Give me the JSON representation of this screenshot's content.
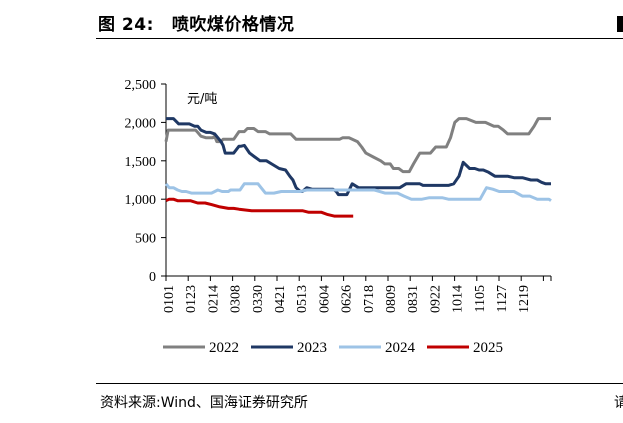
{
  "header": {
    "figure_label": "图 24:",
    "title_text": "喷吹煤价格情况",
    "edge_fragment": ""
  },
  "source": {
    "text": "资料来源:Wind、国海证券研究所",
    "edge_fragment": "请"
  },
  "chart_data": {
    "type": "line",
    "title": "喷吹煤价格情况",
    "unit_label": "元/吨",
    "ylim": [
      0,
      2500
    ],
    "yticks": [
      0,
      500,
      1000,
      1500,
      2000,
      2500
    ],
    "ytick_labels": [
      "0",
      "500",
      "1,000",
      "1,500",
      "2,000",
      "2,500"
    ],
    "categories": [
      "0101",
      "0123",
      "0214",
      "0308",
      "0330",
      "0421",
      "0513",
      "0604",
      "0626",
      "0718",
      "0809",
      "0831",
      "0922",
      "1014",
      "1105",
      "1127",
      "1219"
    ],
    "legend_position": "bottom",
    "series": [
      {
        "name": "2022",
        "color": "#808080",
        "x": [
          1,
          3,
          7,
          10,
          18,
          25,
          29,
          31,
          34,
          39,
          41,
          45,
          47,
          49,
          53,
          55,
          57,
          65,
          70,
          71,
          75,
          78,
          82,
          84,
          88,
          91,
          95,
          99,
          101,
          109,
          112,
          115,
          119,
          124,
          128,
          130,
          132,
          134,
          141,
          147,
          149,
          151,
          157,
          165,
          168,
          174,
          182,
          186,
          190,
          197,
          204,
          208,
          209,
          213,
          216,
          219,
          221,
          225,
          229,
          231,
          235,
          241,
          244,
          247,
          251,
          256,
          262,
          266,
          270,
          274,
          278,
          285,
          294,
          303,
          311,
          315,
          320,
          324,
          328,
          330,
          336,
          344,
          349,
          353,
          357,
          360,
          365
        ],
        "values": [
          1750,
          1900,
          1900,
          1900,
          1900,
          1900,
          1900,
          1870,
          1820,
          1800,
          1800,
          1800,
          1820,
          1750,
          1750,
          1780,
          1780,
          1780,
          1880,
          1880,
          1880,
          1920,
          1920,
          1920,
          1880,
          1880,
          1880,
          1850,
          1850,
          1850,
          1850,
          1850,
          1850,
          1780,
          1780,
          1780,
          1780,
          1780,
          1780,
          1780,
          1780,
          1780,
          1780,
          1780,
          1800,
          1800,
          1750,
          1680,
          1600,
          1550,
          1500,
          1460,
          1460,
          1460,
          1400,
          1400,
          1400,
          1360,
          1360,
          1360,
          1460,
          1600,
          1600,
          1600,
          1600,
          1680,
          1680,
          1680,
          1800,
          2000,
          2050,
          2050,
          2000,
          2000,
          1950,
          1950,
          1900,
          1850,
          1850,
          1850,
          1850,
          1850,
          1950,
          2050,
          2050,
          2050,
          2050
        ]
      },
      {
        "name": "2023",
        "color": "#1f3864",
        "x": [
          1,
          2,
          8,
          13,
          18,
          23,
          28,
          31,
          34,
          39,
          43,
          47,
          53,
          55,
          57,
          61,
          65,
          70,
          72,
          75,
          80,
          85,
          90,
          96,
          102,
          108,
          114,
          118,
          121,
          124,
          128,
          130,
          134,
          139,
          145,
          151,
          155,
          159,
          162,
          164,
          168,
          172,
          177,
          183,
          190,
          196,
          203,
          210,
          216,
          222,
          228,
          233,
          236,
          239,
          241,
          244,
          249,
          253,
          258,
          263,
          268,
          273,
          278,
          282,
          288,
          293,
          297,
          301,
          306,
          312,
          318,
          324,
          330,
          338,
          346,
          352,
          356,
          360,
          365
        ],
        "values": [
          2050,
          2050,
          2050,
          1980,
          1980,
          1980,
          1950,
          1950,
          1900,
          1870,
          1870,
          1850,
          1750,
          1700,
          1600,
          1600,
          1600,
          1690,
          1690,
          1700,
          1600,
          1550,
          1500,
          1500,
          1450,
          1400,
          1380,
          1300,
          1250,
          1150,
          1100,
          1100,
          1150,
          1130,
          1130,
          1130,
          1130,
          1130,
          1100,
          1060,
          1060,
          1060,
          1200,
          1150,
          1150,
          1150,
          1150,
          1150,
          1150,
          1150,
          1200,
          1200,
          1200,
          1200,
          1200,
          1180,
          1180,
          1180,
          1180,
          1180,
          1180,
          1200,
          1300,
          1480,
          1400,
          1400,
          1380,
          1380,
          1350,
          1300,
          1300,
          1300,
          1280,
          1280,
          1250,
          1250,
          1220,
          1200,
          1200
        ]
      },
      {
        "name": "2024",
        "color": "#9dc3e6",
        "x": [
          1,
          4,
          8,
          12,
          16,
          20,
          25,
          32,
          38,
          44,
          50,
          54,
          60,
          62,
          67,
          71,
          75,
          78,
          82,
          88,
          95,
          99,
          103,
          110,
          116,
          122,
          128,
          134,
          140,
          147,
          152,
          158,
          163,
          168,
          178,
          188,
          198,
          208,
          214,
          220,
          226,
          233,
          238,
          243,
          250,
          256,
          262,
          268,
          274,
          279,
          285,
          292,
          298,
          304,
          310,
          316,
          322,
          330,
          338,
          345,
          352,
          359,
          363,
          365
        ],
        "values": [
          1200,
          1150,
          1150,
          1120,
          1100,
          1100,
          1080,
          1080,
          1080,
          1080,
          1120,
          1100,
          1100,
          1120,
          1120,
          1120,
          1200,
          1200,
          1200,
          1200,
          1080,
          1080,
          1080,
          1100,
          1100,
          1100,
          1100,
          1120,
          1120,
          1120,
          1120,
          1120,
          1120,
          1120,
          1120,
          1120,
          1120,
          1080,
          1080,
          1080,
          1040,
          1000,
          1000,
          1000,
          1020,
          1020,
          1020,
          1000,
          1000,
          1000,
          1000,
          1000,
          1000,
          1150,
          1130,
          1100,
          1100,
          1100,
          1040,
          1040,
          1000,
          1000,
          1000,
          980
        ]
      },
      {
        "name": "2025",
        "color": "#c00000",
        "x": [
          1,
          4,
          8,
          12,
          18,
          24,
          31,
          38,
          44,
          52,
          60,
          65,
          70,
          76,
          82,
          88,
          94,
          100,
          106,
          112,
          118,
          124,
          130,
          136,
          142,
          148,
          154,
          160,
          166,
          172,
          178
        ],
        "values": [
          980,
          1000,
          1000,
          980,
          980,
          980,
          950,
          950,
          930,
          900,
          880,
          880,
          870,
          860,
          850,
          850,
          850,
          850,
          850,
          850,
          850,
          850,
          850,
          830,
          830,
          830,
          800,
          780,
          780,
          780,
          780
        ]
      }
    ]
  }
}
